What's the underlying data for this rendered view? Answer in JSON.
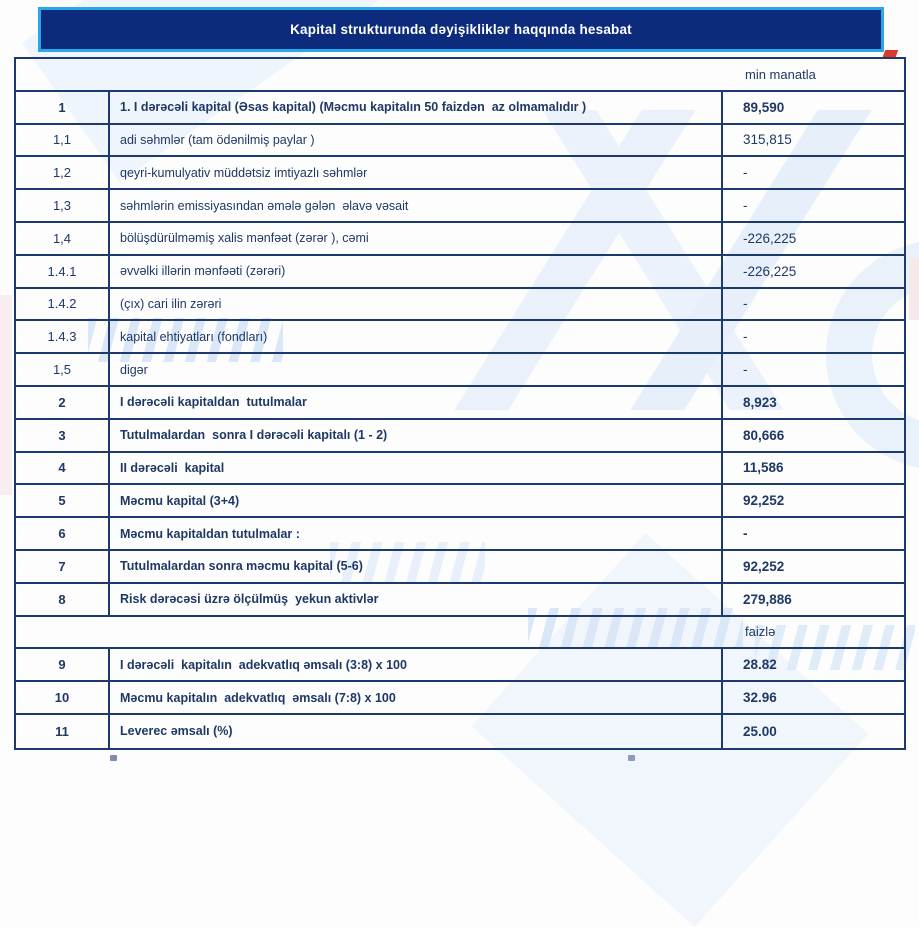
{
  "title_bar": {
    "text": "Kapital strukturunda dəyişikliklər haqqında hesabat"
  },
  "colors": {
    "title_background": "#0d2b7d",
    "title_border": "#2aa7e8",
    "table_border": "#1c3a6e",
    "text": "#1f3864",
    "watermark_blue": "#eaf1fa",
    "accent_red": "#d93a2b"
  },
  "table": {
    "unit_header_top": "min manatla",
    "unit_header_mid": "faizlə",
    "rows": [
      {
        "num": "1",
        "desc": "1. I dərəcəli kapital (Əsas kapital) (Məcmu kapitalın 50 faizdən  az olmamalıdır )",
        "val": "89,590"
      },
      {
        "num": "1,1",
        "desc": "adi səhmlər (tam ödənilmiş paylar )",
        "val": "315,815"
      },
      {
        "num": "1,2",
        "desc": "qeyri-kumulyativ müddətsiz imtiyazlı səhmlər",
        "val": "-"
      },
      {
        "num": "1,3",
        "desc": "səhmlərin emissiyasından əmələ gələn  əlavə vəsait",
        "val": "-"
      },
      {
        "num": "1,4",
        "desc": "bölüşdürülməmiş xalis mənfəət (zərər ), cəmi",
        "val": "-226,225"
      },
      {
        "num": "1.4.1",
        "desc": "əvvəlki illərin mənfəəti (zərəri)",
        "val": "-226,225"
      },
      {
        "num": "1.4.2",
        "desc": "(çıx) cari ilin zərəri",
        "val": "-"
      },
      {
        "num": "1.4.3",
        "desc": "kapital ehtiyatları (fondları)",
        "val": "-"
      },
      {
        "num": "1,5",
        "desc": "digər",
        "val": "-"
      },
      {
        "num": "2",
        "desc": "I dərəcəli kapitaldan  tutulmalar",
        "val": "8,923"
      },
      {
        "num": "3",
        "desc": "Tutulmalardan  sonra I dərəcəli kapitalı (1 - 2)",
        "val": "80,666"
      },
      {
        "num": "4",
        "desc": "II dərəcəli  kapital",
        "val": "11,586"
      },
      {
        "num": "5",
        "desc": "Məcmu kapital (3+4)",
        "val": "92,252"
      },
      {
        "num": "6",
        "desc": "Məcmu kapitaldan tutulmalar :",
        "val": "-"
      },
      {
        "num": "7",
        "desc": "Tutulmalardan sonra məcmu kapital (5-6)",
        "val": "92,252"
      },
      {
        "num": "8",
        "desc": "Risk dərəcəsi üzrə ölçülmüş  yekun aktivlər",
        "val": "279,886"
      },
      {
        "num": "9",
        "desc": "I dərəcəli  kapitalın  adekvatlıq əmsalı (3:8) x 100",
        "val": "28.82"
      },
      {
        "num": "10",
        "desc": "Məcmu kapitalın  adekvatlıq  əmsalı (7:8) x 100",
        "val": "32.96"
      },
      {
        "num": "11",
        "desc": "Leverec əmsalı (%)",
        "val": "25.00"
      }
    ]
  }
}
